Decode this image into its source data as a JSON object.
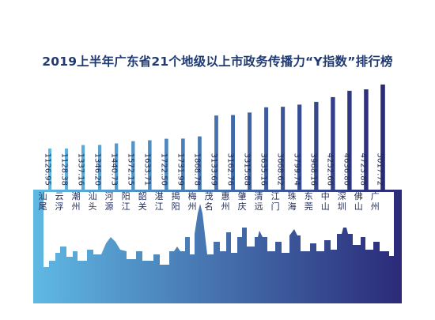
{
  "title": "2019上半年广东省21个地级以上市政务传播力“Y指数”排行榜",
  "chart_data": {
    "type": "bar",
    "categories": [
      "汕尾",
      "云浮",
      "潮州",
      "汕头",
      "河源",
      "阳江",
      "韶关",
      "湛江",
      "揭阳",
      "梅州",
      "茂名",
      "惠州",
      "肇庆",
      "清远",
      "江门",
      "珠海",
      "东莞",
      "中山",
      "深圳",
      "佛山",
      "广州"
    ],
    "values": [
      1126.95,
      1128.38,
      1337.16,
      1346.2,
      1440.73,
      1572.15,
      1633.71,
      1722.5,
      1731.99,
      1868.78,
      3133.69,
      3162.76,
      3315.88,
      3635.16,
      3668.62,
      3799.74,
      3968.16,
      4252.66,
      4636.8,
      4723.88,
      5017.72
    ],
    "value_labels": [
      "1126.95",
      "1128.38",
      "1337.16",
      "1346.20",
      "1440.73",
      "1572.15",
      "1633.71",
      "1722.50",
      "1731.99",
      "1868.78",
      "3133.69",
      "3162.76",
      "3315.88",
      "3635.16",
      "3668.62",
      "3799.74",
      "3968.16",
      "4252.66",
      "4636.80",
      "4723.88",
      "5017.72"
    ],
    "title": "2019上半年广东省21个地级以上市政务传播力“Y指数”排行榜",
    "xlabel": "",
    "ylabel": "",
    "colors": {
      "light": "#5fb9e3",
      "dark": "#2b2a78"
    }
  }
}
